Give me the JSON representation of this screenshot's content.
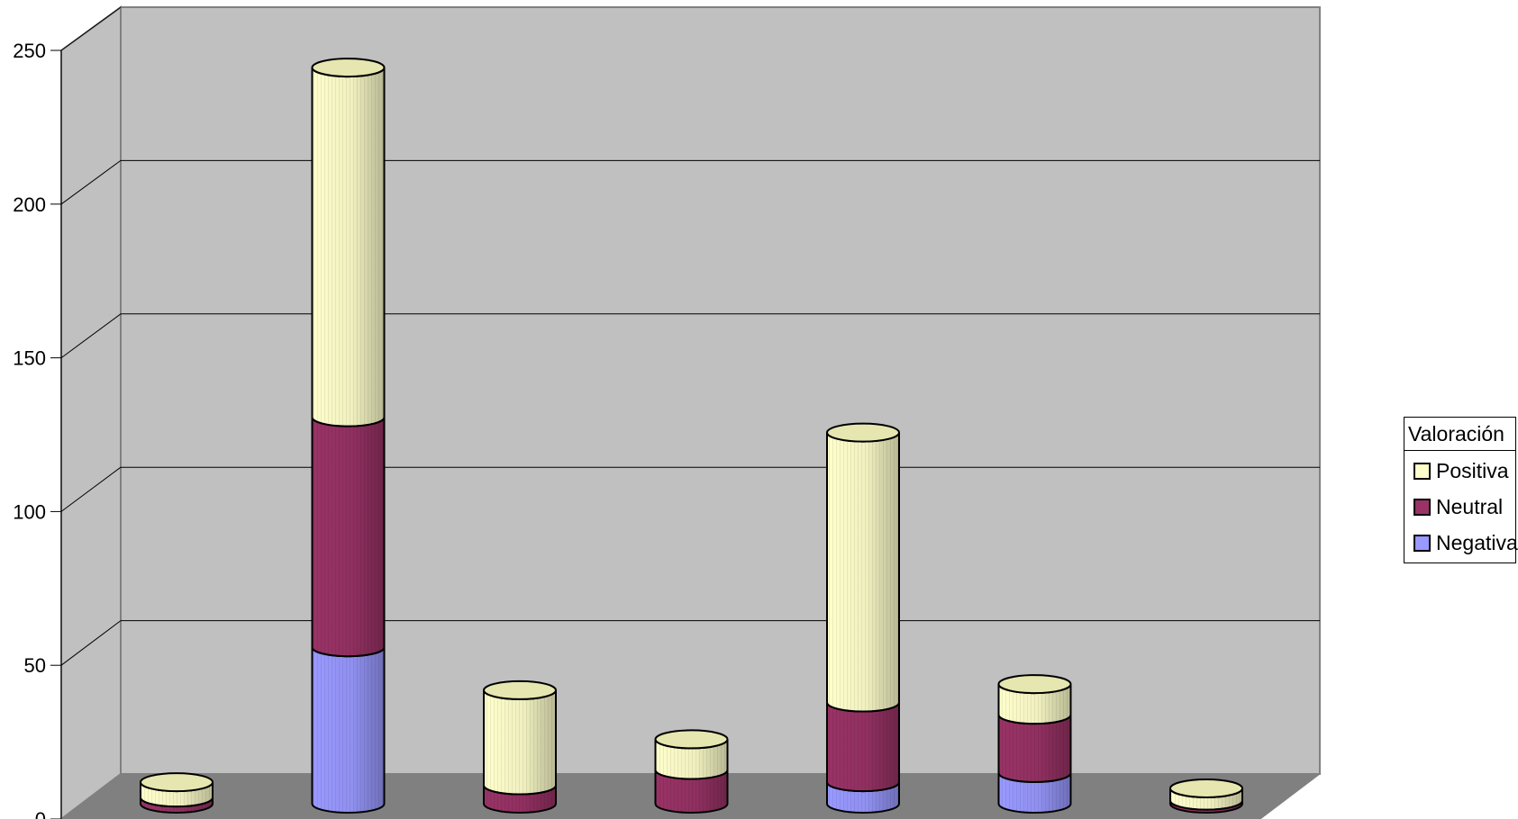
{
  "chart_data": {
    "type": "bar",
    "subtype": "stacked-3d-cylinder",
    "categories": [
      "",
      "",
      "",
      "",
      "",
      "",
      ""
    ],
    "series": [
      {
        "name": "Negativa",
        "color": "#9999ff",
        "values": [
          0,
          51,
          0,
          0,
          7,
          10,
          0
        ]
      },
      {
        "name": "Neutral",
        "color": "#993366",
        "values": [
          2,
          75,
          6,
          11,
          26,
          19,
          1
        ]
      },
      {
        "name": "Positiva",
        "color": "#ffffcc",
        "values": [
          5,
          114,
          31,
          10,
          88,
          10,
          4
        ]
      }
    ],
    "title": "",
    "xlabel": "",
    "ylabel": "",
    "ylim": [
      0,
      250
    ],
    "yticks": [
      "0",
      "50",
      "100",
      "150",
      "200",
      "250"
    ],
    "grid": true,
    "legend_position": "right",
    "legend_title": "Valoración"
  },
  "legend": {
    "title": "Valoración",
    "items": [
      {
        "label": "Positiva",
        "color": "#ffffcc"
      },
      {
        "label": "Neutral",
        "color": "#993366"
      },
      {
        "label": "Negativa",
        "color": "#9999ff"
      }
    ]
  }
}
